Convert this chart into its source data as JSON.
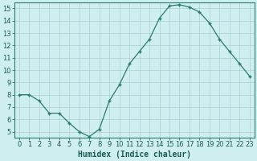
{
  "x": [
    0,
    1,
    2,
    3,
    4,
    5,
    6,
    7,
    8,
    9,
    10,
    11,
    12,
    13,
    14,
    15,
    16,
    17,
    18,
    19,
    20,
    21,
    22,
    23
  ],
  "y": [
    8.0,
    8.0,
    7.5,
    6.5,
    6.5,
    5.7,
    5.0,
    4.6,
    5.2,
    7.5,
    8.8,
    10.5,
    11.5,
    12.5,
    14.2,
    15.2,
    15.3,
    15.1,
    14.7,
    13.8,
    12.5,
    11.5,
    10.5,
    9.5
  ],
  "line_color": "#2d7a6a",
  "marker": "+",
  "marker_size": 3,
  "markeredgewidth": 1.0,
  "linewidth": 0.9,
  "xlabel": "Humidex (Indice chaleur)",
  "xlim_min": -0.5,
  "xlim_max": 23.5,
  "ylim_min": 4.5,
  "ylim_max": 15.5,
  "yticks": [
    5,
    6,
    7,
    8,
    9,
    10,
    11,
    12,
    13,
    14,
    15
  ],
  "xticks": [
    0,
    1,
    2,
    3,
    4,
    5,
    6,
    7,
    8,
    9,
    10,
    11,
    12,
    13,
    14,
    15,
    16,
    17,
    18,
    19,
    20,
    21,
    22,
    23
  ],
  "bg_color": "#ceeef0",
  "grid_color": "#aacfd4",
  "axis_color": "#2d7a6a",
  "tick_label_color": "#1a5a50",
  "xlabel_color": "#1a5a50",
  "xlabel_fontsize": 7,
  "tick_fontsize": 6
}
